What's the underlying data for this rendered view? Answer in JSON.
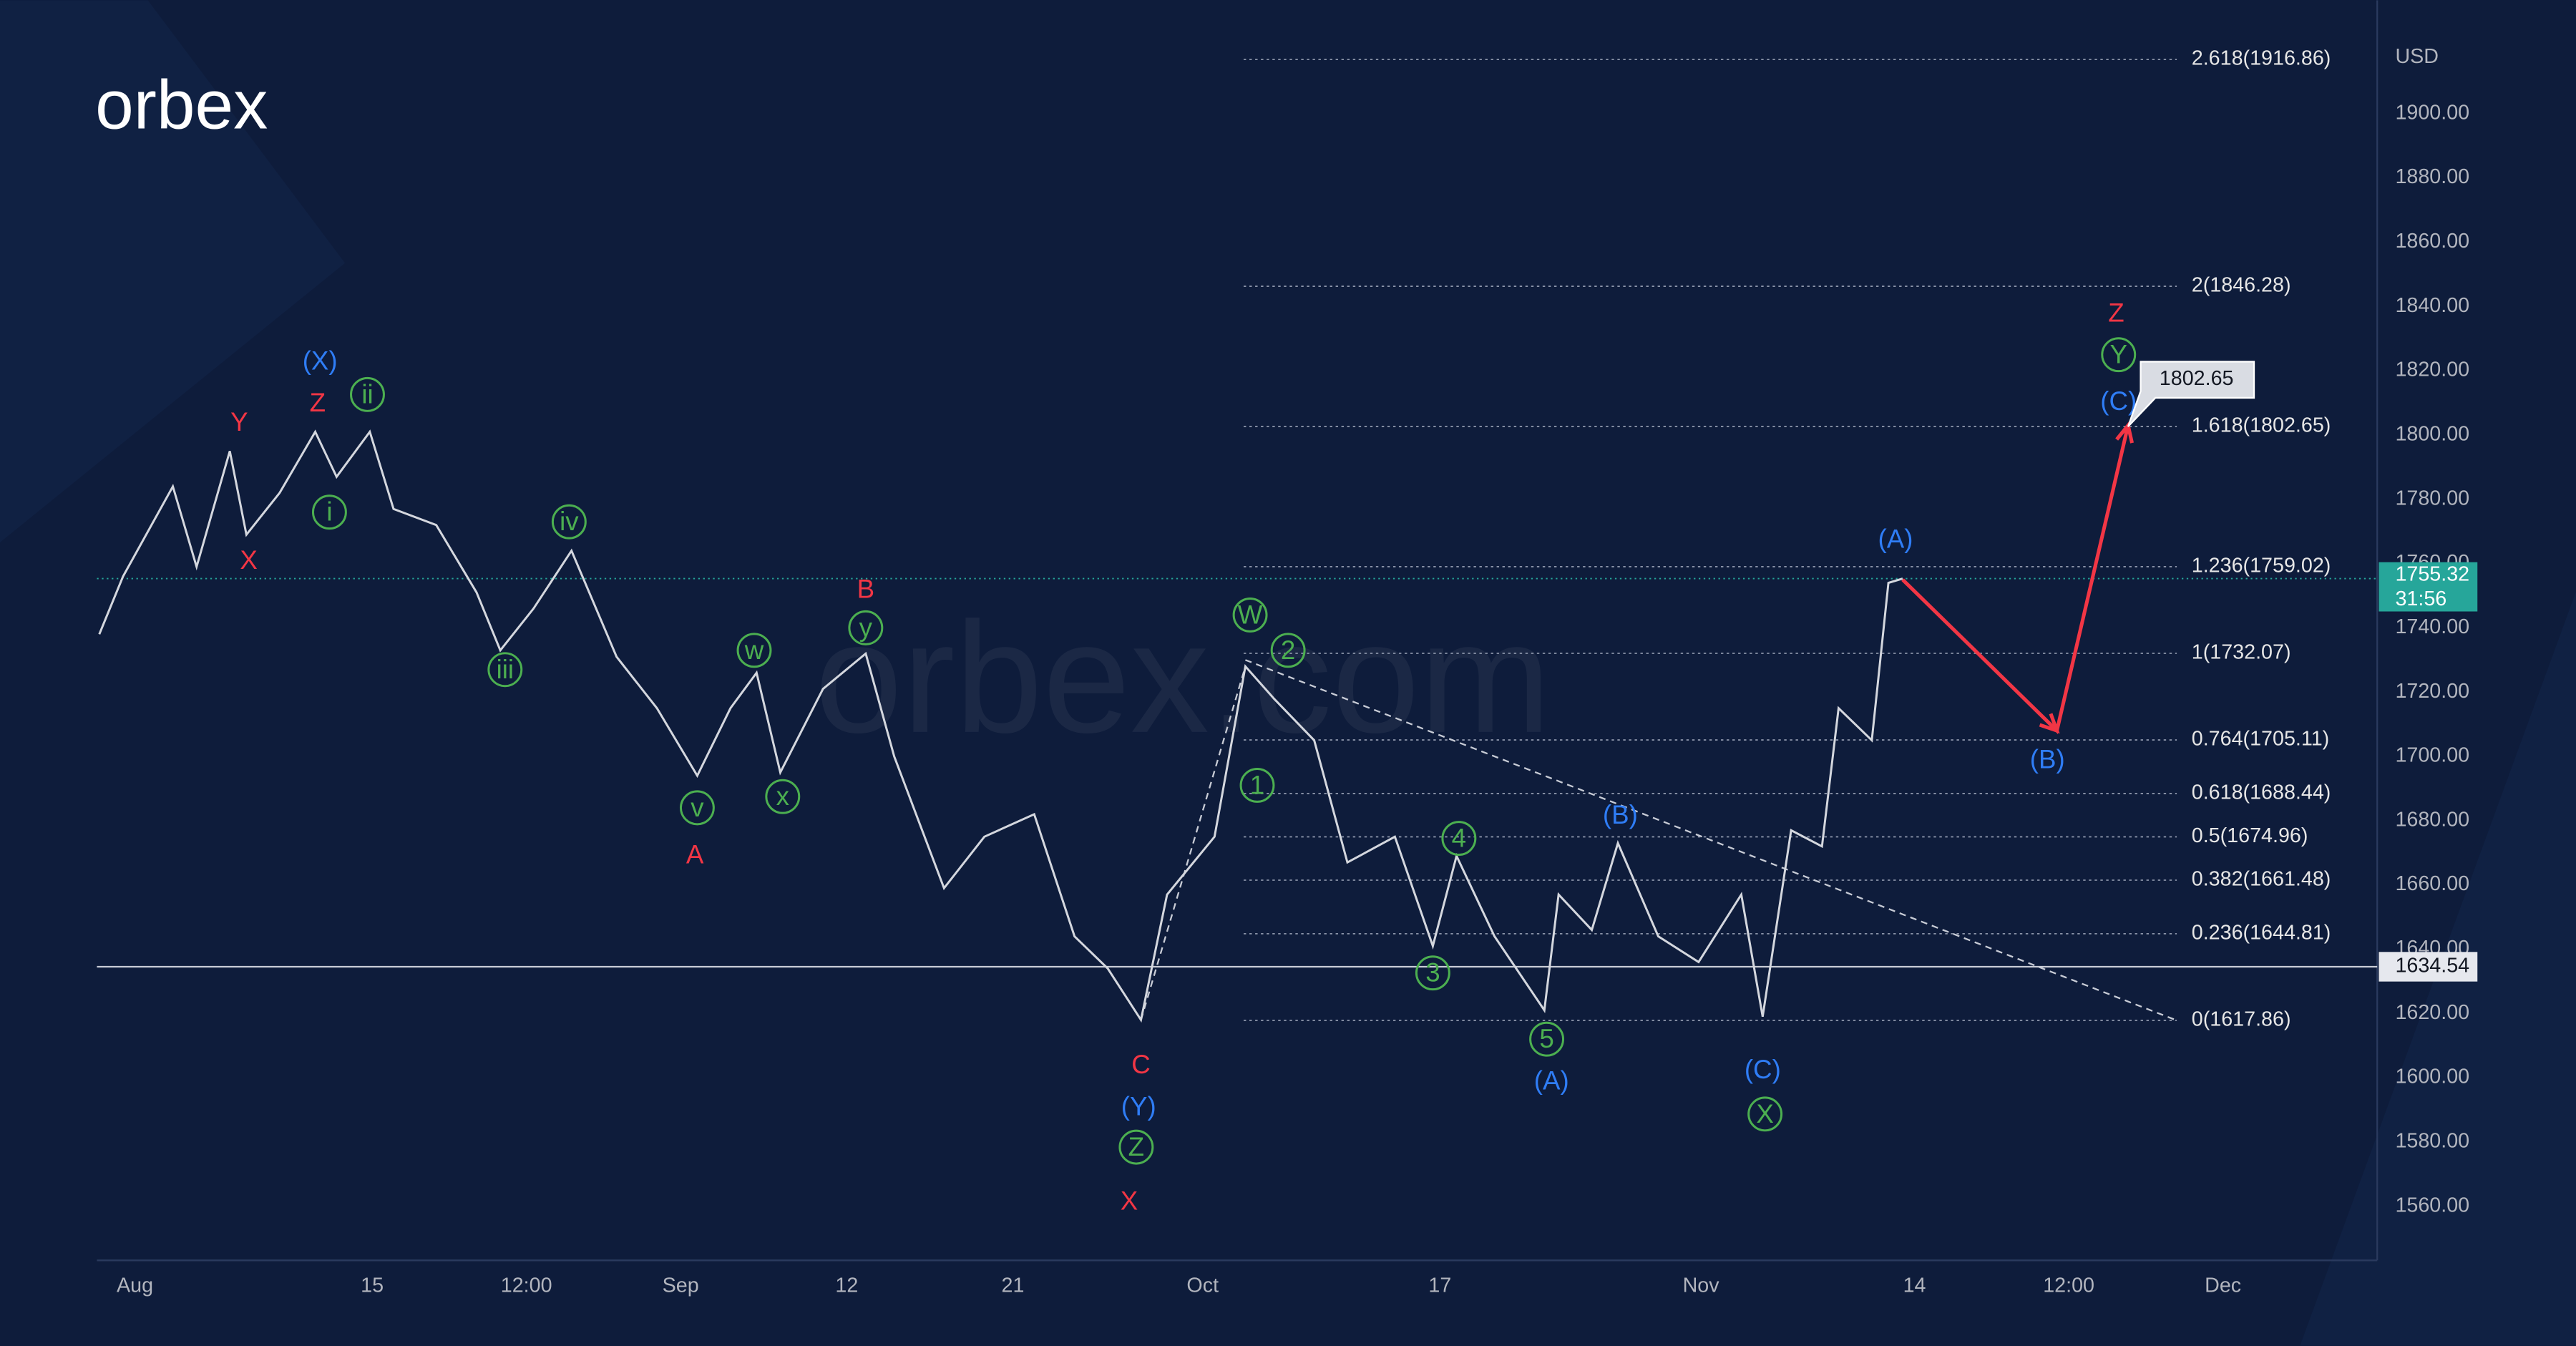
{
  "logo": "orbex",
  "watermark": "orbex.com",
  "chart_data": {
    "type": "line",
    "unit": "USD",
    "series": [
      {
        "color": "#d4d7de",
        "x": [
          -1.5,
          -0.5,
          1.6,
          2.6,
          4,
          4.7,
          6.1,
          7.6,
          8.5,
          9.9,
          10.9,
          12.7,
          14.4,
          15.4,
          16.8,
          18.4,
          20.3,
          22,
          23.7,
          25.1,
          26.2,
          27.2,
          29,
          30.8,
          32,
          34.1,
          35.8,
          37.9,
          39.6,
          41,
          42.4,
          43.5,
          45.5,
          46.8,
          48,
          49.7,
          51.1,
          53.1,
          54.7,
          55.7,
          57.3,
          59.4,
          60,
          61.4,
          62.5,
          64.2,
          65.9,
          67.7,
          68.6,
          69.8,
          71.1,
          71.8,
          73.2,
          73.9,
          74.5
        ],
        "values": [
          1738,
          1756,
          1784,
          1759,
          1795,
          1769,
          1782,
          1801,
          1787,
          1801,
          1777,
          1772,
          1751,
          1733,
          1746,
          1764,
          1731,
          1715,
          1694,
          1715,
          1726,
          1695,
          1721,
          1732,
          1700,
          1659,
          1675,
          1682,
          1644,
          1634,
          1618,
          1657,
          1675,
          1728,
          1718,
          1705,
          1667,
          1675,
          1641,
          1669,
          1644,
          1621,
          1657,
          1646,
          1673,
          1644,
          1636,
          1657,
          1619,
          1677,
          1672,
          1715,
          1705,
          1754,
          1755.32
        ]
      }
    ],
    "xlim": [
      -1.6,
      94.5
    ],
    "ylim": [
      1544.2,
      1935.3
    ],
    "xticks": [
      {
        "value": 0,
        "label": "Aug"
      },
      {
        "value": 10,
        "label": "15"
      },
      {
        "value": 16.5,
        "label": "12:00"
      },
      {
        "value": 23,
        "label": "Sep"
      },
      {
        "value": 30,
        "label": "12"
      },
      {
        "value": 37,
        "label": "21"
      },
      {
        "value": 45,
        "label": "Oct"
      },
      {
        "value": 55,
        "label": "17"
      },
      {
        "value": 66,
        "label": "Nov"
      },
      {
        "value": 75,
        "label": "14"
      },
      {
        "value": 81.5,
        "label": "12:00"
      },
      {
        "value": 88,
        "label": "Dec"
      }
    ],
    "yticks": [
      {
        "value": 1560,
        "label": "1560.00"
      },
      {
        "value": 1580,
        "label": "1580.00"
      },
      {
        "value": 1600,
        "label": "1600.00"
      },
      {
        "value": 1620,
        "label": "1620.00"
      },
      {
        "value": 1640,
        "label": "1640.00"
      },
      {
        "value": 1660,
        "label": "1660.00"
      },
      {
        "value": 1680,
        "label": "1680.00"
      },
      {
        "value": 1700,
        "label": "1700.00"
      },
      {
        "value": 1720,
        "label": "1720.00"
      },
      {
        "value": 1740,
        "label": "1740.00"
      },
      {
        "value": 1760,
        "label": "1760.00"
      },
      {
        "value": 1780,
        "label": "1780.00"
      },
      {
        "value": 1800,
        "label": "1800.00"
      },
      {
        "value": 1820,
        "label": "1820.00"
      },
      {
        "value": 1840,
        "label": "1840.00"
      },
      {
        "value": 1860,
        "label": "1860.00"
      },
      {
        "value": 1880,
        "label": "1880.00"
      },
      {
        "value": 1900,
        "label": "1900.00"
      }
    ],
    "grid": false,
    "fib_levels": [
      {
        "value": 1617.86,
        "label": "0(1617.86)"
      },
      {
        "value": 1644.81,
        "label": "0.236(1644.81)"
      },
      {
        "value": 1661.48,
        "label": "0.382(1661.48)"
      },
      {
        "value": 1674.96,
        "label": "0.5(1674.96)"
      },
      {
        "value": 1688.44,
        "label": "0.618(1688.44)"
      },
      {
        "value": 1705.11,
        "label": "0.764(1705.11)"
      },
      {
        "value": 1732.07,
        "label": "1(1732.07)"
      },
      {
        "value": 1759.02,
        "label": "1.236(1759.02)"
      },
      {
        "value": 1802.65,
        "label": "1.618(1802.65)"
      },
      {
        "value": 1846.28,
        "label": "2(1846.28)"
      },
      {
        "value": 1916.86,
        "label": "2.618(1916.86)"
      }
    ],
    "last_price": 1755.32,
    "countdown": "31:56",
    "hline": 1634.54,
    "callout": 1802.65,
    "trendlines": [
      {
        "x": [
          46.8,
          86
        ],
        "y": [
          1730,
          1618
        ]
      },
      {
        "x": [
          42.4,
          46.8
        ],
        "y": [
          1618,
          1728
        ]
      }
    ],
    "projection": {
      "color": "#f23645",
      "x": [
        74.5,
        81,
        84
      ],
      "y": [
        1755,
        1708,
        1803
      ]
    },
    "annotations": [
      {
        "text": "(X)",
        "color": "#2f7df6",
        "x": 7.8,
        "y": 1823,
        "circle": false
      },
      {
        "text": "Y",
        "color": "#f23645",
        "x": 4.4,
        "y": 1804,
        "circle": false
      },
      {
        "text": "Z",
        "color": "#f23645",
        "x": 7.7,
        "y": 1810,
        "circle": false
      },
      {
        "text": "ii",
        "color": "#4caf50",
        "x": 9.8,
        "y": 1812.6,
        "circle": true
      },
      {
        "text": "i",
        "color": "#4caf50",
        "x": 8.2,
        "y": 1776,
        "circle": true
      },
      {
        "text": "X",
        "color": "#f23645",
        "x": 4.8,
        "y": 1761,
        "circle": false
      },
      {
        "text": "iv",
        "color": "#4caf50",
        "x": 18.3,
        "y": 1773,
        "circle": true
      },
      {
        "text": "iii",
        "color": "#4caf50",
        "x": 15.6,
        "y": 1727,
        "circle": true
      },
      {
        "text": "w",
        "color": "#4caf50",
        "x": 26.1,
        "y": 1733,
        "circle": true
      },
      {
        "text": "y",
        "color": "#4caf50",
        "x": 30.8,
        "y": 1740,
        "circle": true
      },
      {
        "text": "B",
        "color": "#f23645",
        "x": 30.8,
        "y": 1752,
        "circle": false
      },
      {
        "text": "v",
        "color": "#4caf50",
        "x": 23.7,
        "y": 1684,
        "circle": true
      },
      {
        "text": "x",
        "color": "#4caf50",
        "x": 27.3,
        "y": 1687.5,
        "circle": true
      },
      {
        "text": "A",
        "color": "#f23645",
        "x": 23.6,
        "y": 1669.4,
        "circle": false
      },
      {
        "text": "C",
        "color": "#f23645",
        "x": 42.4,
        "y": 1604,
        "circle": false
      },
      {
        "text": "(Y)",
        "color": "#2f7df6",
        "x": 42.3,
        "y": 1591,
        "circle": false
      },
      {
        "text": "Z",
        "color": "#4caf50",
        "x": 42.2,
        "y": 1578.4,
        "circle": true
      },
      {
        "text": "X",
        "color": "#f23645",
        "x": 41.9,
        "y": 1561.6,
        "circle": false
      },
      {
        "text": "W",
        "color": "#4caf50",
        "x": 47,
        "y": 1744,
        "circle": true
      },
      {
        "text": "2",
        "color": "#4caf50",
        "x": 48.6,
        "y": 1733,
        "circle": true
      },
      {
        "text": "1",
        "color": "#4caf50",
        "x": 47.3,
        "y": 1691,
        "circle": true
      },
      {
        "text": "4",
        "color": "#4caf50",
        "x": 55.8,
        "y": 1674.5,
        "circle": true
      },
      {
        "text": "3",
        "color": "#4caf50",
        "x": 54.7,
        "y": 1632.6,
        "circle": true
      },
      {
        "text": "5",
        "color": "#4caf50",
        "x": 59.5,
        "y": 1612,
        "circle": true
      },
      {
        "text": "(A)",
        "color": "#2f7df6",
        "x": 59.7,
        "y": 1599,
        "circle": false
      },
      {
        "text": "(B)",
        "color": "#2f7df6",
        "x": 62.6,
        "y": 1681.7,
        "circle": false
      },
      {
        "text": "(C)",
        "color": "#2f7df6",
        "x": 68.6,
        "y": 1602.5,
        "circle": false
      },
      {
        "text": "X",
        "color": "#4caf50",
        "x": 68.7,
        "y": 1588.7,
        "circle": true
      },
      {
        "text": "(A)",
        "color": "#2f7df6",
        "x": 74.2,
        "y": 1767.6,
        "circle": false
      },
      {
        "text": "(B)",
        "color": "#2f7df6",
        "x": 80.6,
        "y": 1699,
        "circle": false
      },
      {
        "text": "Z",
        "color": "#f23645",
        "x": 83.5,
        "y": 1838,
        "circle": false
      },
      {
        "text": "Y",
        "color": "#4caf50",
        "x": 83.6,
        "y": 1825,
        "circle": true
      },
      {
        "text": "(C)",
        "color": "#2f7df6",
        "x": 83.6,
        "y": 1810.5,
        "circle": false
      }
    ]
  }
}
